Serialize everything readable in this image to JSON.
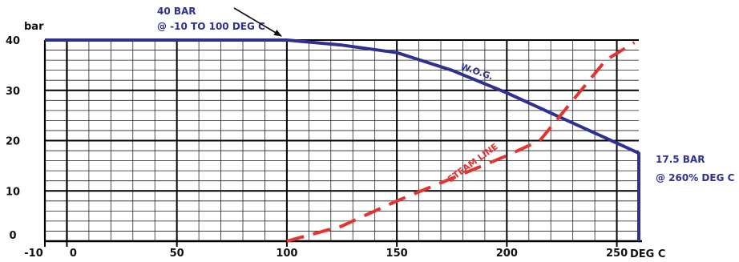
{
  "chart_data": {
    "type": "line",
    "ylabel": "bar",
    "xlabel": "DEG C",
    "xlim": [
      -10,
      260
    ],
    "ylim": [
      0,
      40
    ],
    "x_ticks": [
      -10,
      0,
      50,
      100,
      150,
      200,
      250
    ],
    "x_tick_labels": [
      "-10",
      "0",
      "50",
      "100",
      "150",
      "200",
      "250"
    ],
    "y_ticks": [
      0,
      10,
      20,
      30,
      40
    ],
    "y_tick_labels": [
      "0",
      "10",
      "20",
      "30",
      "40"
    ],
    "grid": true,
    "series": [
      {
        "name": "W.O.G.",
        "color": "#2e3192",
        "style": "solid",
        "points": [
          [
            -10,
            40
          ],
          [
            0,
            40
          ],
          [
            50,
            40
          ],
          [
            100,
            40
          ],
          [
            125,
            39
          ],
          [
            150,
            37.5
          ],
          [
            175,
            34
          ],
          [
            200,
            29.5
          ],
          [
            225,
            24.5
          ],
          [
            250,
            19.5
          ],
          [
            260,
            17.5
          ],
          [
            260,
            0
          ]
        ]
      },
      {
        "name": "STEAM LINE",
        "color": "#e3342f",
        "style": "dashed",
        "points": [
          [
            100,
            0
          ],
          [
            125,
            3
          ],
          [
            150,
            8
          ],
          [
            175,
            12.5
          ],
          [
            200,
            17
          ],
          [
            215,
            20
          ],
          [
            230,
            28
          ],
          [
            245,
            36
          ],
          [
            258,
            39.5
          ]
        ]
      }
    ],
    "annotations": [
      {
        "id": "top",
        "lines": [
          "40 BAR",
          "@ -10 TO 100 DEG C"
        ],
        "color": "#2e3192",
        "arrow_to": [
          100,
          40
        ]
      },
      {
        "id": "right",
        "lines": [
          "17.5 BAR",
          "@ 260% DEG C"
        ],
        "color": "#2e3192"
      }
    ]
  }
}
